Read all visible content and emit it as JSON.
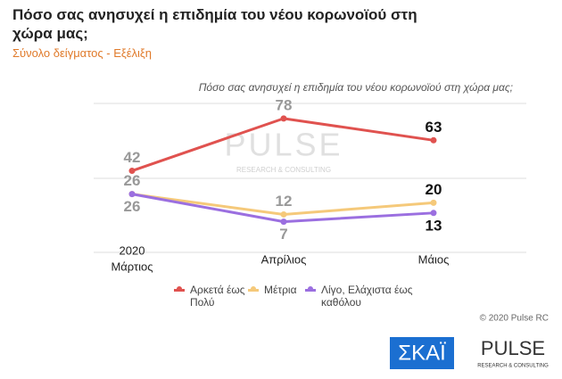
{
  "chart_data": {
    "type": "line",
    "title": "Πόσο σας ανησυχεί η επιδημία του νέου κορωνοϊού στη χώρα μας;",
    "subtitle": "Σύνολο δείγματος - Εξέλιξη",
    "question": "Πόσο σας ανησυχεί η επιδημία του νέου κορωνοϊού στη χώρα μας;",
    "year_label": "2020",
    "categories": [
      "Μάρτιος",
      "Απρίλιος",
      "Μάιος"
    ],
    "series": [
      {
        "name": "Αρκετά έως Πολύ",
        "color": "#e0524f",
        "values": [
          42,
          78,
          63
        ]
      },
      {
        "name": "Μέτρια",
        "color": "#f5c97a",
        "values": [
          26,
          12,
          20
        ]
      },
      {
        "name": "Λίγο, Ελάχιστα έως καθόλου",
        "color": "#9b6fe0",
        "values": [
          26,
          7,
          13
        ]
      }
    ],
    "ylim": [
      0,
      100
    ],
    "copyright": "© 2020 Pulse RC",
    "watermark": "PULSE",
    "watermark_sub": "RESEARCH & CONSULTING",
    "logo_skai": "ΣΚΑΪ",
    "logo_pulse": "PULSE",
    "logo_pulse_sub": "RESEARCH & CONSULTING"
  }
}
